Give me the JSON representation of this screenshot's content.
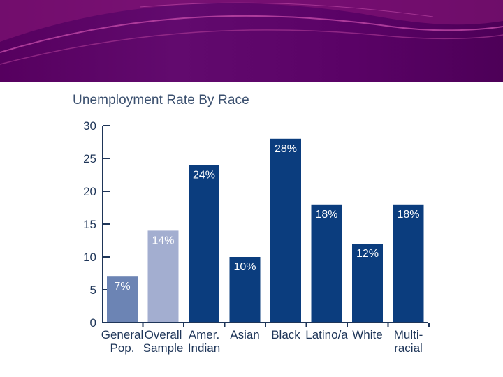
{
  "colors": {
    "banner": "#5a0266",
    "dark_bar": "#0b3d7e",
    "light_bar": "#a3aed0",
    "mid_bar": "#6c84b4",
    "axis": "#1e3558"
  },
  "chart_data": {
    "type": "bar",
    "title": "Unemployment Rate By Race",
    "xlabel": "",
    "ylabel": "",
    "ylim": [
      0,
      30
    ],
    "yticks": [
      0,
      5,
      10,
      15,
      20,
      25,
      30
    ],
    "categories": [
      [
        "General",
        "Pop."
      ],
      [
        "Overall",
        "Sample"
      ],
      [
        "Amer.",
        "Indian"
      ],
      [
        "Asian"
      ],
      [
        "Black"
      ],
      [
        "Latino/a"
      ],
      [
        "White"
      ],
      [
        "Multi-",
        "racial"
      ]
    ],
    "values": [
      7,
      14,
      24,
      10,
      28,
      18,
      12,
      18
    ],
    "data_labels": [
      "7%",
      "14%",
      "24%",
      "10%",
      "28%",
      "18%",
      "12%",
      "18%"
    ],
    "bar_colors": [
      "#6c84b4",
      "#a3aed0",
      "#0b3d7e",
      "#0b3d7e",
      "#0b3d7e",
      "#0b3d7e",
      "#0b3d7e",
      "#0b3d7e"
    ],
    "grid": false,
    "legend": "none"
  }
}
